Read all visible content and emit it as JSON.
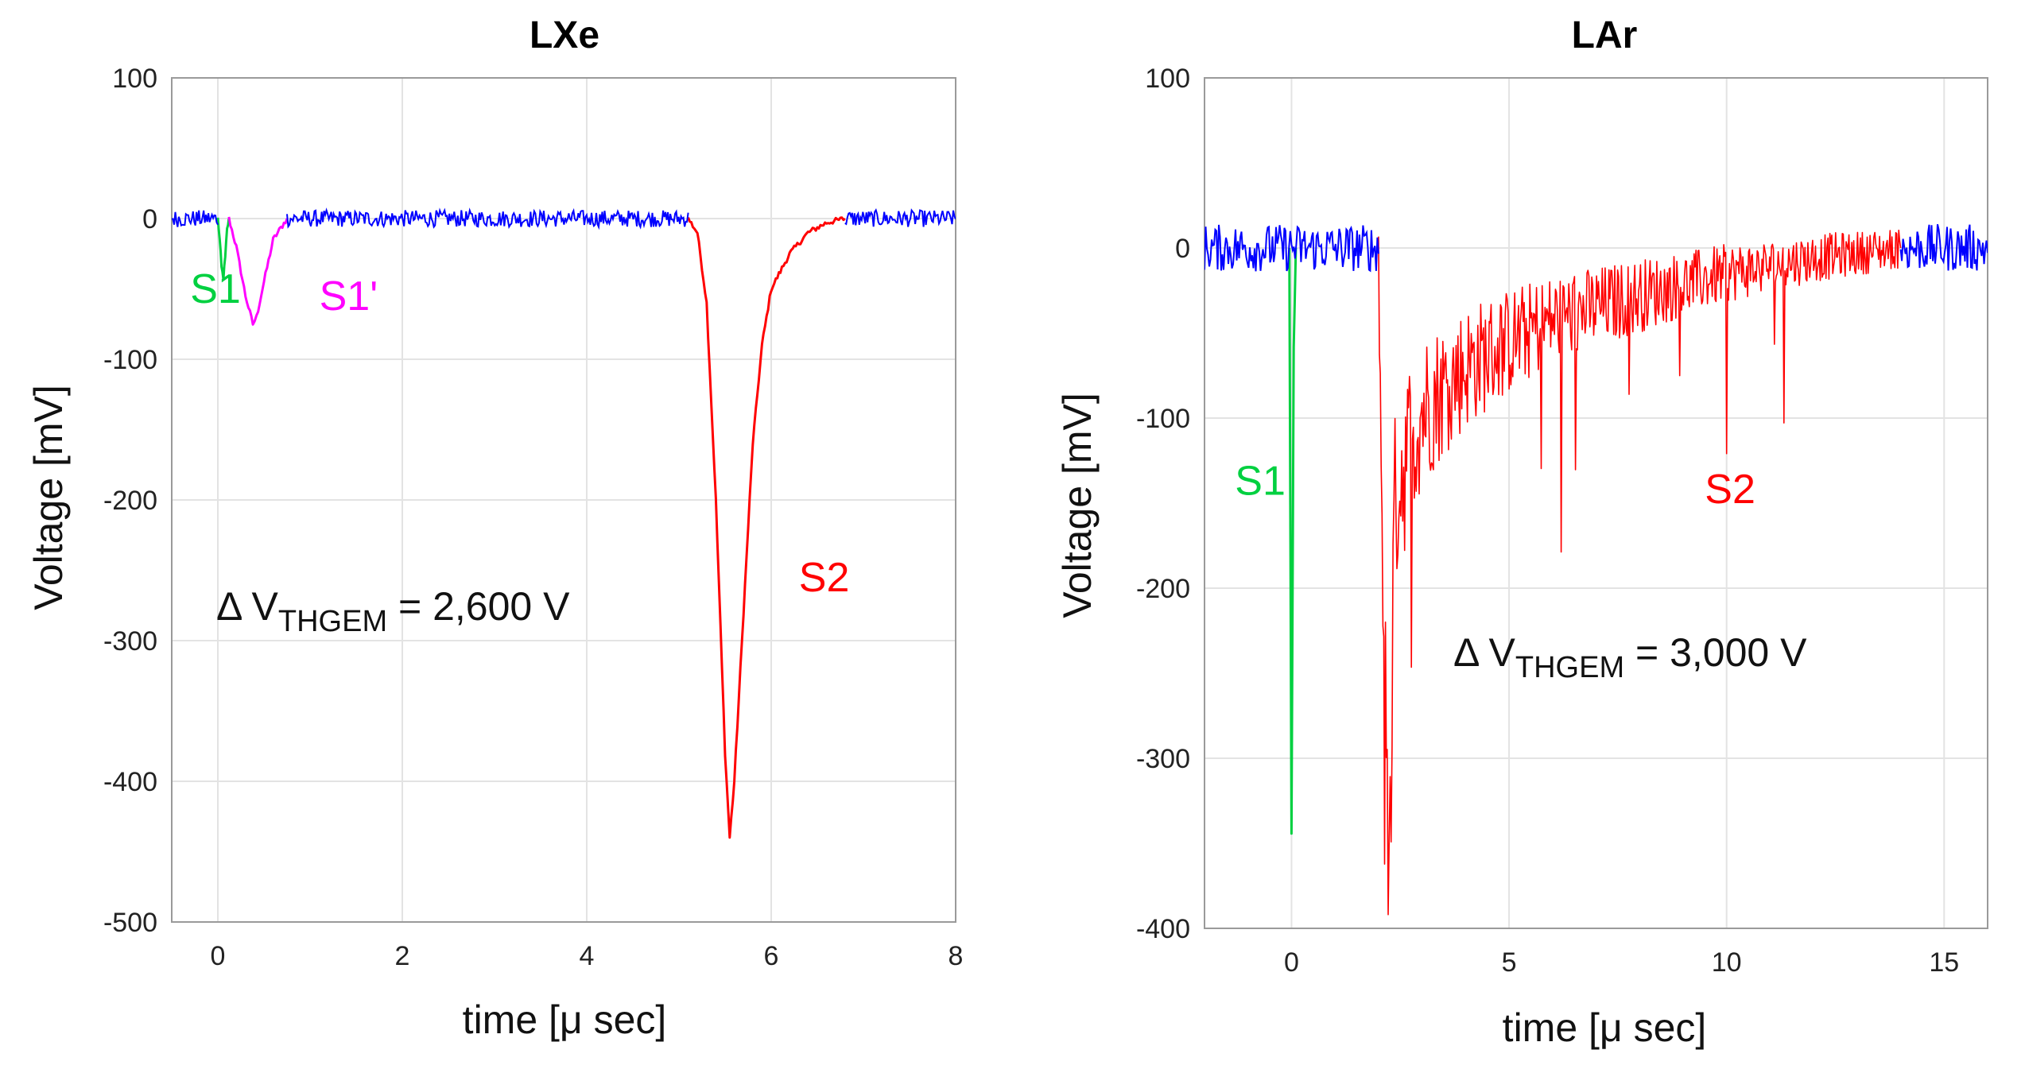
{
  "chart_data": [
    {
      "type": "line",
      "title": "LXe",
      "xlabel": "time [μ sec]",
      "ylabel": "Voltage [mV]",
      "xlim": [
        -0.5,
        8
      ],
      "ylim": [
        -500,
        100
      ],
      "xticks": [
        0,
        2,
        4,
        6,
        8
      ],
      "yticks": [
        100,
        0,
        -100,
        -200,
        -300,
        -400,
        -500
      ],
      "grid": true,
      "annotation": {
        "prefix": "Δ V",
        "subscript": "THGEM",
        "suffix": " = 2,600 V"
      },
      "series": [
        {
          "name": "S1",
          "color": "#00d040",
          "points": [
            [
              0.0,
              0
            ],
            [
              0.02,
              -15
            ],
            [
              0.04,
              -35
            ],
            [
              0.06,
              -42
            ],
            [
              0.08,
              -28
            ],
            [
              0.1,
              -8
            ],
            [
              0.12,
              0
            ]
          ]
        },
        {
          "name": "S1'",
          "color": "#ff00ff",
          "points": [
            [
              0.12,
              0
            ],
            [
              0.2,
              -20
            ],
            [
              0.3,
              -55
            ],
            [
              0.38,
              -75
            ],
            [
              0.42,
              -70
            ],
            [
              0.5,
              -45
            ],
            [
              0.6,
              -15
            ],
            [
              0.75,
              0
            ]
          ]
        },
        {
          "name": "S2",
          "color": "#ff0000",
          "points": [
            [
              5.1,
              0
            ],
            [
              5.2,
              -10
            ],
            [
              5.3,
              -60
            ],
            [
              5.4,
              -200
            ],
            [
              5.5,
              -380
            ],
            [
              5.55,
              -440
            ],
            [
              5.6,
              -400
            ],
            [
              5.7,
              -280
            ],
            [
              5.8,
              -160
            ],
            [
              5.9,
              -90
            ],
            [
              6.0,
              -50
            ],
            [
              6.2,
              -25
            ],
            [
              6.4,
              -10
            ],
            [
              6.6,
              -3
            ],
            [
              6.8,
              0
            ]
          ]
        },
        {
          "name": "baseline",
          "color": "#0000ff",
          "noise_mV": 6,
          "segments": [
            [
              -0.5,
              0.0
            ],
            [
              0.75,
              5.1
            ],
            [
              6.8,
              8.0
            ]
          ]
        }
      ],
      "labels": [
        {
          "text": "S1",
          "color": "#00d040",
          "x": -0.3,
          "y": -60
        },
        {
          "text": "S1'",
          "color": "#ff00ff",
          "x": 1.1,
          "y": -65
        },
        {
          "text": "S2",
          "color": "#ff0000",
          "x": 6.3,
          "y": -265
        }
      ]
    },
    {
      "type": "line",
      "title": "LAr",
      "xlabel": "time [μ sec]",
      "ylabel": "Voltage [mV]",
      "xlim": [
        -2,
        16
      ],
      "ylim": [
        -400,
        100
      ],
      "xticks": [
        0,
        5,
        10,
        15
      ],
      "yticks": [
        100,
        0,
        -100,
        -200,
        -300,
        -400
      ],
      "grid": true,
      "annotation": {
        "prefix": "Δ V",
        "subscript": "THGEM",
        "suffix": " = 3,000 V"
      },
      "series": [
        {
          "name": "S1",
          "color": "#00d040",
          "points": [
            [
              -0.05,
              0
            ],
            [
              0.0,
              -345
            ],
            [
              0.05,
              -60
            ],
            [
              0.1,
              0
            ]
          ]
        },
        {
          "name": "S2",
          "color": "#ff0000",
          "points": [
            [
              2.0,
              0
            ],
            [
              2.1,
              -200
            ],
            [
              2.2,
              -370
            ],
            [
              2.4,
              -140
            ],
            [
              3,
              -95
            ],
            [
              4,
              -70
            ],
            [
              5,
              -55
            ],
            [
              6,
              -42
            ],
            [
              8,
              -28
            ],
            [
              10,
              -15
            ],
            [
              12,
              -6
            ],
            [
              14,
              0
            ]
          ]
        },
        {
          "name": "baseline",
          "color": "#0000ff",
          "noise_mV": 14,
          "segments": [
            [
              -2,
              2.0
            ],
            [
              14,
              16
            ]
          ]
        }
      ],
      "labels": [
        {
          "text": "S1",
          "color": "#00d040",
          "x": -1.3,
          "y": -145
        },
        {
          "text": "S2",
          "color": "#ff0000",
          "x": 9.5,
          "y": -150
        }
      ]
    }
  ]
}
